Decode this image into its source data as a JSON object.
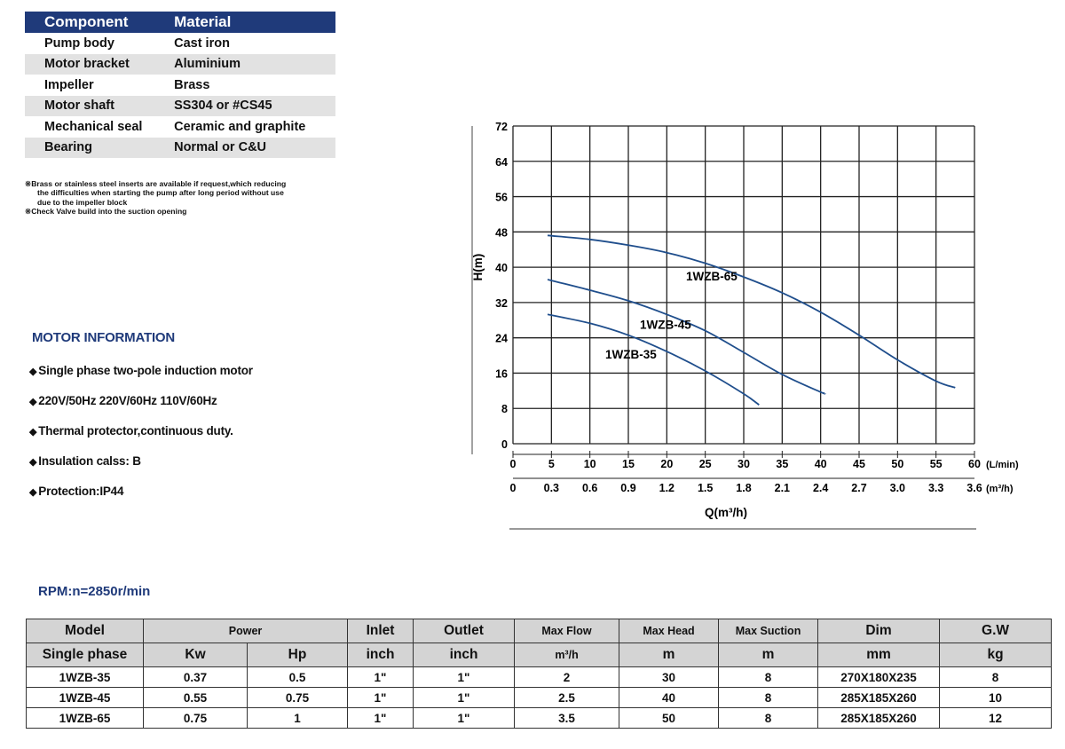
{
  "materials": {
    "headers": [
      "Component",
      "Material"
    ],
    "rows": [
      [
        "Pump body",
        "Cast iron"
      ],
      [
        "Motor bracket",
        "Aluminium"
      ],
      [
        "Impeller",
        "Brass"
      ],
      [
        "Motor shaft",
        "SS304 or #CS45"
      ],
      [
        "Mechanical seal",
        "Ceramic and graphite"
      ],
      [
        "Bearing",
        "Normal or C&U"
      ]
    ]
  },
  "notes": {
    "line1": "※Brass or stainless steel inserts are available if request,which reducing",
    "line2": "the difficulties when starting the pump after long period without use",
    "line3": "due to the impeller block",
    "line4": "※Check Valve build into the suction opening"
  },
  "motor": {
    "title": "MOTOR INFORMATION",
    "items": [
      "Single phase two-pole induction motor",
      "220V/50Hz  220V/60Hz  110V/60Hz",
      "Thermal protector,continuous duty.",
      "Insulation calss: B",
      "Protection:IP44"
    ]
  },
  "chart_data": {
    "type": "line",
    "title": "",
    "xlabel": "Q(m³/h)",
    "ylabel": "H(m)",
    "x_unit_top": "(L/min)",
    "x_unit_bottom": "(m³/h)",
    "xlim": [
      0,
      60
    ],
    "ylim": [
      0,
      72
    ],
    "x_ticks": [
      0,
      5,
      10,
      15,
      20,
      25,
      30,
      35,
      40,
      45,
      50,
      55,
      60
    ],
    "x_ticks_m3h": [
      "0",
      "0.3",
      "0.6",
      "0.9",
      "1.2",
      "1.5",
      "1.8",
      "2.1",
      "2.4",
      "2.7",
      "3.0",
      "3.3",
      "3.6"
    ],
    "y_ticks": [
      0,
      8,
      16,
      24,
      32,
      40,
      48,
      56,
      64,
      72
    ],
    "grid": true,
    "series": [
      {
        "name": "1WZB-65",
        "x": [
          4.5,
          10,
          15,
          20,
          25,
          30,
          35,
          40,
          45,
          50,
          55,
          57.5
        ],
        "y": [
          47.2,
          46.3,
          45,
          43.3,
          40.9,
          37.8,
          34.2,
          29.8,
          24.6,
          19,
          14.2,
          12.7
        ]
      },
      {
        "name": "1WZB-45",
        "x": [
          4.5,
          10,
          15,
          20,
          25,
          30,
          35,
          40,
          40.5
        ],
        "y": [
          37.2,
          34.8,
          32.4,
          29.3,
          25.6,
          20.7,
          15.7,
          11.7,
          11.5
        ]
      },
      {
        "name": "1WZB-35",
        "x": [
          4.5,
          10,
          15,
          20,
          25,
          30,
          32
        ],
        "y": [
          29.3,
          27.3,
          24.6,
          20.9,
          16.5,
          11.3,
          8.8
        ]
      }
    ],
    "label_positions_data": [
      {
        "name": "1WZB-65",
        "x": 22.5,
        "y": 37
      },
      {
        "name": "1WZB-45",
        "x": 16.5,
        "y": 26
      },
      {
        "name": "1WZB-35",
        "x": 12,
        "y": 19.3
      }
    ]
  },
  "rpm": "RPM:n=2850r/min",
  "specs": {
    "header1": [
      "Model",
      "Power",
      "Inlet",
      "Outlet",
      "Max Flow",
      "Max Head",
      "Max Suction",
      "Dim",
      "G.W"
    ],
    "header2": [
      "Single phase",
      "Kw",
      "Hp",
      "inch",
      "inch",
      "m³/h",
      "m",
      "m",
      "mm",
      "kg"
    ],
    "rows": [
      [
        "1WZB-35",
        "0.37",
        "0.5",
        "1\"",
        "1\"",
        "2",
        "30",
        "8",
        "270X180X235",
        "8"
      ],
      [
        "1WZB-45",
        "0.55",
        "0.75",
        "1\"",
        "1\"",
        "2.5",
        "40",
        "8",
        "285X185X260",
        "10"
      ],
      [
        "1WZB-65",
        "0.75",
        "1",
        "1\"",
        "1\"",
        "3.5",
        "50",
        "8",
        "285X185X260",
        "12"
      ]
    ]
  },
  "colors": {
    "accent": "#1f3a7a",
    "curve": "#1f4e8c"
  }
}
